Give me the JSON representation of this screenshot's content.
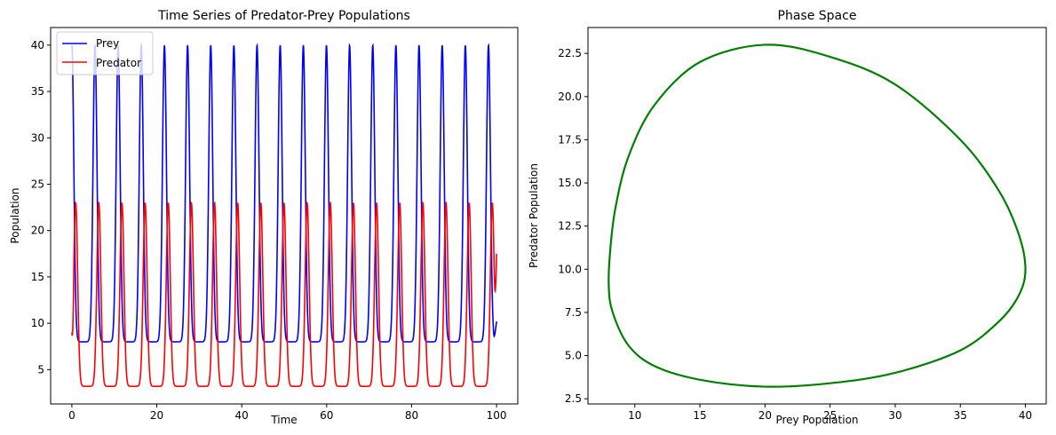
{
  "chart_data": [
    {
      "type": "line",
      "title": "Time Series of Predator-Prey Populations",
      "xlabel": "Time",
      "ylabel": "Population",
      "xlim": [
        -5,
        105
      ],
      "ylim": [
        1.3,
        41.9
      ],
      "xticks": [
        0,
        20,
        40,
        60,
        80,
        100
      ],
      "yticks": [
        5,
        10,
        15,
        20,
        25,
        30,
        35,
        40
      ],
      "legend": "top-left",
      "grid": false,
      "period": 5.45,
      "series": [
        {
          "name": "Prey",
          "color": "#0000ff",
          "min": 8.0,
          "max": 40.0,
          "start": 40.0,
          "end": 10.2,
          "peak_times": [
            0.0,
            5.45,
            10.9,
            16.35,
            21.8,
            27.25,
            32.7,
            38.15,
            43.6,
            49.05,
            54.5,
            59.95,
            65.4,
            70.85,
            76.3,
            81.75,
            87.2,
            92.65,
            98.1
          ]
        },
        {
          "name": "Predator",
          "color": "#ff0000",
          "min": 3.2,
          "max": 23.0,
          "start": 9.0,
          "end": 17.5,
          "peak_times": [
            0.9,
            6.35,
            11.8,
            17.25,
            22.7,
            28.15,
            33.6,
            39.05,
            44.5,
            49.95,
            55.4,
            60.85,
            66.3,
            71.75,
            77.2,
            82.65,
            88.1,
            93.55,
            99.0
          ]
        }
      ]
    },
    {
      "type": "line",
      "title": "Phase Space",
      "xlabel": "Prey Population",
      "ylabel": "Predator Population",
      "xlim": [
        6.4,
        41.6
      ],
      "ylim": [
        2.2,
        24.0
      ],
      "xticks": [
        10,
        15,
        20,
        25,
        30,
        35,
        40
      ],
      "yticks": [
        2.5,
        5.0,
        7.5,
        10.0,
        12.5,
        15.0,
        17.5,
        20.0,
        22.5
      ],
      "grid": false,
      "series": [
        {
          "color": "#008000",
          "x": [
            40.0,
            39.5,
            38.0,
            35.0,
            30.0,
            25.0,
            20.0,
            15.0,
            11.5,
            9.5,
            8.5,
            8.1,
            8.0,
            8.3,
            9.5,
            11.5,
            15.0,
            20.0,
            25.0,
            30.0,
            35.0,
            38.0,
            39.5,
            40.0
          ],
          "y": [
            10.0,
            12.0,
            14.5,
            17.5,
            20.7,
            22.3,
            23.0,
            22.0,
            19.5,
            16.5,
            13.5,
            11.0,
            9.0,
            7.5,
            5.6,
            4.4,
            3.6,
            3.2,
            3.4,
            4.0,
            5.3,
            7.0,
            8.5,
            10.0
          ]
        }
      ]
    }
  ]
}
